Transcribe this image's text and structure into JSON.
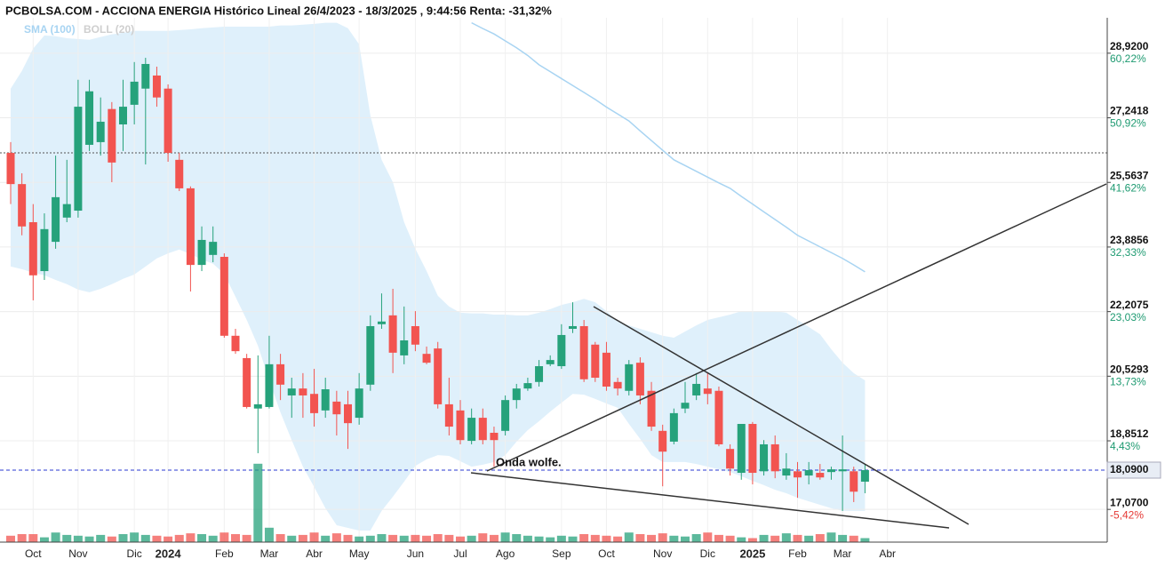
{
  "chart_data": {
    "type": "candlestick",
    "title": "PCBOLSA.COM - ACCIONA ENERGIA Histórico Lineal 26/4/2023 - 18/3/2025 , 9:44:56 Renta: -31,32%",
    "legend": [
      {
        "name": "SMA (100)",
        "color": "#a8d4f2"
      },
      {
        "name": "BOLL (20)",
        "color": "#cfcfcf"
      }
    ],
    "annotation": "Onda wolfe.",
    "categories": [
      null,
      null,
      "Oct",
      null,
      null,
      null,
      "Nov",
      null,
      null,
      null,
      null,
      "Dic",
      null,
      null,
      "2024",
      null,
      null,
      null,
      null,
      "Feb",
      null,
      null,
      null,
      "Mar",
      null,
      null,
      null,
      "Abr",
      null,
      null,
      null,
      "May",
      null,
      null,
      null,
      null,
      "Jun",
      null,
      null,
      null,
      "Jul",
      null,
      null,
      null,
      "Ago",
      null,
      null,
      null,
      null,
      "Sep",
      null,
      null,
      null,
      "Oct",
      null,
      null,
      null,
      null,
      "Nov",
      null,
      null,
      null,
      "Dic",
      null,
      null,
      null,
      "2025",
      null,
      null,
      null,
      "Feb",
      null,
      null,
      null,
      "Mar",
      null,
      null,
      null,
      "Abr",
      null
    ],
    "open": [
      26.33,
      25.52,
      24.53,
      23.26,
      24.02,
      24.65,
      24.83,
      26.54,
      26.61,
      27.47,
      27.07,
      27.58,
      28.0,
      28.34,
      28.0,
      26.15,
      25.41,
      23.42,
      23.68,
      23.63,
      21.58,
      21.0,
      19.69,
      19.73,
      20.84,
      20.03,
      20.21,
      20.07,
      19.64,
      19.87,
      19.8,
      19.45,
      20.31,
      21.88,
      22.11,
      21.07,
      21.83,
      21.11,
      21.25,
      19.8,
      19.64,
      18.85,
      19.45,
      19.06,
      19.11,
      19.91,
      20.21,
      20.38,
      20.84,
      20.79,
      21.76,
      21.83,
      21.35,
      21.14,
      20.38,
      20.15,
      20.88,
      20.15,
      19.11,
      18.83,
      19.69,
      20.03,
      20.21,
      20.15,
      18.64,
      18.02,
      19.29,
      18.06,
      18.76,
      17.95,
      18.06,
      17.95,
      18.02,
      18.04,
      18.06,
      18.06,
      17.79,
      null,
      null,
      null
    ],
    "high": [
      26.61,
      25.8,
      25.0,
      24.76,
      26.26,
      26.15,
      28.23,
      28.23,
      27.77,
      27.65,
      28.23,
      28.69,
      28.8,
      28.57,
      28.11,
      26.33,
      25.46,
      24.42,
      24.42,
      23.72,
      21.76,
      21.11,
      21.07,
      21.58,
      21.11,
      20.49,
      20.61,
      20.72,
      20.49,
      20.15,
      20.15,
      20.61,
      22.11,
      22.68,
      22.8,
      22.34,
      22.22,
      21.3,
      21.42,
      20.49,
      19.91,
      19.69,
      19.69,
      19.22,
      20.03,
      20.33,
      20.49,
      20.95,
      21.07,
      21.88,
      22.45,
      21.99,
      21.42,
      21.42,
      20.49,
      20.95,
      21.02,
      20.38,
      19.27,
      19.69,
      20.38,
      20.61,
      20.61,
      20.26,
      18.76,
      19.29,
      19.34,
      18.87,
      18.99,
      18.53,
      18.3,
      18.3,
      18.25,
      18.18,
      18.99,
      18.18,
      18.25,
      null,
      null,
      null
    ],
    "low": [
      25.0,
      24.19,
      22.5,
      23.03,
      23.84,
      24.53,
      24.65,
      26.38,
      26.26,
      25.57,
      26.38,
      27.07,
      26.03,
      27.53,
      26.1,
      25.34,
      22.73,
      23.26,
      23.49,
      21.53,
      21.11,
      19.69,
      18.53,
      19.69,
      19.91,
      19.45,
      19.45,
      19.22,
      19.45,
      18.99,
      18.64,
      19.27,
      20.15,
      21.76,
      20.61,
      20.84,
      21.18,
      20.84,
      19.69,
      18.99,
      18.76,
      18.76,
      18.76,
      18.18,
      18.99,
      19.69,
      20.15,
      20.26,
      20.79,
      20.72,
      21.65,
      20.38,
      20.38,
      20.15,
      20.03,
      20.03,
      19.8,
      19.11,
      17.67,
      18.76,
      19.57,
      19.91,
      19.8,
      18.71,
      17.95,
      17.84,
      17.72,
      17.95,
      17.88,
      17.84,
      17.37,
      17.72,
      17.84,
      17.84,
      17.03,
      17.26,
      17.49,
      null,
      null,
      null
    ],
    "close": [
      25.52,
      24.42,
      23.15,
      24.35,
      25.18,
      25.0,
      27.53,
      27.93,
      27.14,
      26.08,
      27.53,
      28.18,
      28.64,
      27.77,
      26.33,
      25.41,
      23.42,
      24.07,
      24.02,
      21.58,
      21.18,
      19.73,
      19.8,
      20.84,
      20.31,
      20.21,
      20.03,
      19.57,
      20.19,
      19.54,
      19.31,
      20.21,
      21.83,
      21.95,
      21.14,
      21.46,
      21.35,
      20.88,
      19.8,
      19.22,
      18.87,
      19.45,
      18.87,
      18.87,
      19.91,
      20.21,
      20.35,
      20.79,
      20.95,
      21.6,
      21.83,
      20.45,
      20.49,
      20.26,
      20.21,
      20.84,
      20.03,
      19.22,
      18.57,
      19.57,
      19.84,
      20.33,
      20.07,
      18.76,
      18.13,
      19.29,
      18.02,
      18.76,
      18.06,
      18.13,
      17.9,
      18.09,
      17.9,
      18.11,
      18.11,
      17.53,
      18.09,
      null,
      null,
      null
    ],
    "volume": [
      8,
      10,
      10,
      6,
      12,
      9,
      8,
      7,
      9,
      7,
      10,
      12,
      9,
      8,
      7,
      9,
      11,
      10,
      8,
      12,
      10,
      9,
      98,
      18,
      10,
      8,
      9,
      12,
      8,
      11,
      9,
      7,
      8,
      10,
      9,
      8,
      9,
      8,
      10,
      9,
      7,
      8,
      11,
      9,
      12,
      10,
      8,
      7,
      6,
      8,
      7,
      10,
      9,
      8,
      7,
      12,
      10,
      9,
      11,
      8,
      7,
      10,
      12,
      9,
      8,
      6,
      5,
      9,
      8,
      11,
      9,
      8,
      10,
      12,
      9,
      8,
      5,
      null,
      null,
      null
    ],
    "volume_ylim": [
      0,
      100
    ],
    "bollinger_upper": [
      28.0,
      28.46,
      29.04,
      29.38,
      29.36,
      29.31,
      29.29,
      29.27,
      29.34,
      29.41,
      29.45,
      29.5,
      29.5,
      29.5,
      29.5,
      29.52,
      29.54,
      29.57,
      29.59,
      29.61,
      29.61,
      29.61,
      29.61,
      29.61,
      29.64,
      29.64,
      29.66,
      29.68,
      29.71,
      29.71,
      29.57,
      29.15,
      27.3,
      26.15,
      25.57,
      24.53,
      23.84,
      23.26,
      22.62,
      22.34,
      22.18,
      22.16,
      22.16,
      22.13,
      22.13,
      22.11,
      22.11,
      22.18,
      22.27,
      22.38,
      22.45,
      22.54,
      22.45,
      22.22,
      21.95,
      21.85,
      21.76,
      21.67,
      21.58,
      21.53,
      21.69,
      21.85,
      21.99,
      22.06,
      22.13,
      22.22,
      22.22,
      22.22,
      22.22,
      22.18,
      21.99,
      21.81,
      21.62,
      21.23,
      20.88,
      20.61,
      20.42,
      null,
      null,
      null
    ],
    "bollinger_lower": [
      23.38,
      23.31,
      23.22,
      23.15,
      23.03,
      22.92,
      22.78,
      22.71,
      22.8,
      22.92,
      23.06,
      23.17,
      23.38,
      23.59,
      23.72,
      23.82,
      23.7,
      23.56,
      23.45,
      23.19,
      22.59,
      21.99,
      21.32,
      20.42,
      19.59,
      18.87,
      18.18,
      17.65,
      17.1,
      16.66,
      16.59,
      16.52,
      16.52,
      17.03,
      17.4,
      17.79,
      18.2,
      18.37,
      18.48,
      18.46,
      18.32,
      18.18,
      18.23,
      18.3,
      18.48,
      18.83,
      19.13,
      19.36,
      19.61,
      19.84,
      20.07,
      20.05,
      19.94,
      19.82,
      19.71,
      19.29,
      18.9,
      18.48,
      18.3,
      18.3,
      18.3,
      18.25,
      18.18,
      18.11,
      18.04,
      17.93,
      17.81,
      17.7,
      17.58,
      17.49,
      17.37,
      17.28,
      17.19,
      17.1,
      17.03,
      17.03,
      17.03,
      null,
      null,
      null
    ],
    "sma": [
      null,
      null,
      null,
      null,
      null,
      null,
      null,
      null,
      null,
      null,
      null,
      null,
      null,
      null,
      null,
      null,
      null,
      null,
      null,
      null,
      null,
      null,
      null,
      null,
      null,
      null,
      null,
      null,
      null,
      null,
      null,
      null,
      null,
      null,
      null,
      null,
      null,
      null,
      null,
      null,
      null,
      29.71,
      29.56,
      29.42,
      29.24,
      29.06,
      28.86,
      28.62,
      28.44,
      28.26,
      28.08,
      27.9,
      27.72,
      27.52,
      27.34,
      27.16,
      26.9,
      26.65,
      26.4,
      26.15,
      26.0,
      25.85,
      25.7,
      25.55,
      25.41,
      25.2,
      25.0,
      24.8,
      24.6,
      24.4,
      24.19,
      24.04,
      23.89,
      23.74,
      23.59,
      23.42,
      23.24,
      null,
      null,
      null
    ],
    "colors": {
      "up": "#26a27b",
      "down": "#f25450",
      "band": "#dff0fb",
      "sma": "#a8d4f2"
    },
    "ylim": [
      16.22,
      29.84
    ],
    "yticks": [
      {
        "value": 17.07,
        "label": "17,0700"
      },
      {
        "value": 18.8512,
        "label": "18,8512"
      },
      {
        "value": 20.5293,
        "label": "20,5293"
      },
      {
        "value": 22.2075,
        "label": "22,2075"
      },
      {
        "value": 23.8856,
        "label": "23,8856"
      },
      {
        "value": 25.5637,
        "label": "25,5637"
      },
      {
        "value": 27.2418,
        "label": "27,2418"
      },
      {
        "value": 28.92,
        "label": "28,9200"
      }
    ],
    "ytick_returns": [
      {
        "value": -5.42,
        "label": "-5,42%"
      },
      {
        "value": 4.43,
        "label": "4,43%"
      },
      {
        "value": 13.73,
        "label": "13,73%"
      },
      {
        "value": 23.03,
        "label": "23,03%"
      },
      {
        "value": 32.33,
        "label": "32,33%"
      },
      {
        "value": 41.62,
        "label": "41,62%"
      },
      {
        "value": 50.92,
        "label": "50,92%"
      },
      {
        "value": 60.22,
        "label": "60,22%"
      }
    ],
    "last_price": {
      "value": 18.09,
      "label": "18,0900"
    },
    "reference_level": 26.33,
    "grid": true
  }
}
